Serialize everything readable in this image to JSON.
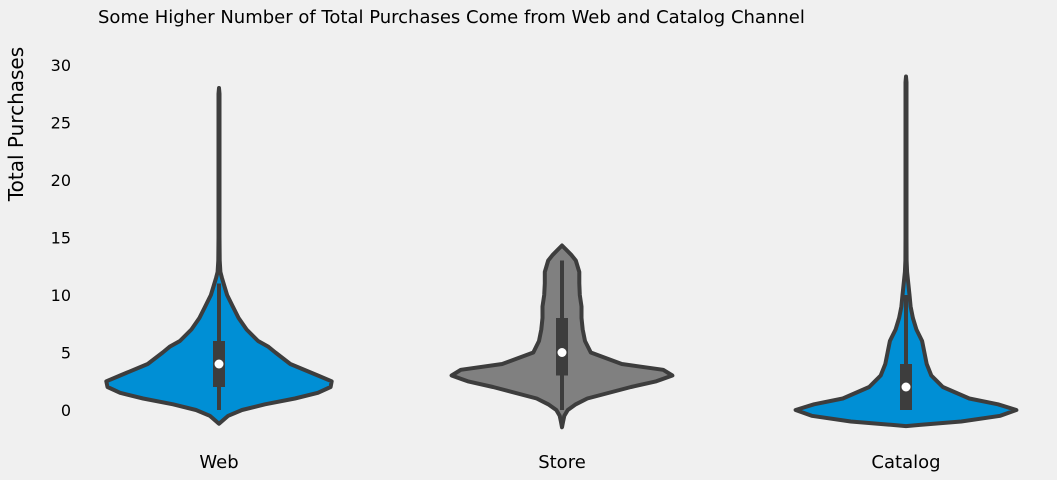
{
  "chart_data": {
    "type": "violin",
    "title": "Some Higher Number of Total Purchases Come from Web and Catalog Channel",
    "xlabel": "",
    "ylabel": "Total Purchases",
    "ylim": [
      -2,
      32
    ],
    "yticks": [
      "0",
      "5",
      "10",
      "15",
      "20",
      "25",
      "30"
    ],
    "categories": [
      "Web",
      "Store",
      "Catalog"
    ],
    "grid": false,
    "colors": {
      "Web": "#008fd5",
      "Store": "#808080",
      "Catalog": "#008fd5",
      "outline": "#3d3d3d",
      "median": "#ffffff",
      "background": "#f0f0f0"
    },
    "violins": [
      {
        "name": "Web",
        "min": 0,
        "q1": 2,
        "median": 4,
        "q3": 6,
        "whisker_high": 11,
        "max": 27,
        "density": [
          [
            -1.2,
            0.0
          ],
          [
            -0.5,
            0.08
          ],
          [
            0,
            0.2
          ],
          [
            0.5,
            0.4
          ],
          [
            1,
            0.66
          ],
          [
            1.5,
            0.86
          ],
          [
            2,
            0.97
          ],
          [
            2.5,
            0.98
          ],
          [
            3,
            0.86
          ],
          [
            4,
            0.62
          ],
          [
            5,
            0.49
          ],
          [
            5.5,
            0.43
          ],
          [
            6,
            0.34
          ],
          [
            7,
            0.24
          ],
          [
            8,
            0.17
          ],
          [
            9,
            0.12
          ],
          [
            10,
            0.07
          ],
          [
            11,
            0.04
          ],
          [
            11.5,
            0.025
          ],
          [
            12,
            0.012
          ],
          [
            13,
            0.006
          ],
          [
            15,
            0.004
          ],
          [
            20,
            0.004
          ],
          [
            25,
            0.004
          ],
          [
            27.5,
            0.004
          ],
          [
            28,
            0.0
          ]
        ]
      },
      {
        "name": "Store",
        "min": 0,
        "q1": 3,
        "median": 5,
        "q3": 8,
        "whisker_high": 13,
        "max": 14,
        "density": [
          [
            -1.5,
            0.0
          ],
          [
            -1,
            0.01
          ],
          [
            -0.5,
            0.02
          ],
          [
            0,
            0.05
          ],
          [
            0.5,
            0.12
          ],
          [
            1,
            0.22
          ],
          [
            2,
            0.6
          ],
          [
            2.5,
            0.82
          ],
          [
            3,
            0.96
          ],
          [
            3.5,
            0.88
          ],
          [
            4,
            0.52
          ],
          [
            5,
            0.25
          ],
          [
            6,
            0.2
          ],
          [
            7,
            0.18
          ],
          [
            8,
            0.17
          ],
          [
            9,
            0.17
          ],
          [
            10,
            0.155
          ],
          [
            11,
            0.15
          ],
          [
            12,
            0.15
          ],
          [
            13,
            0.12
          ],
          [
            13.5,
            0.08
          ],
          [
            14,
            0.03
          ],
          [
            14.3,
            0.0
          ]
        ]
      },
      {
        "name": "Catalog",
        "min": 0,
        "q1": 0,
        "median": 2,
        "q3": 4,
        "whisker_high": 10,
        "max": 28,
        "density": [
          [
            -1.4,
            0.0
          ],
          [
            -1.3,
            0.12
          ],
          [
            -1,
            0.48
          ],
          [
            -0.5,
            0.82
          ],
          [
            0,
            0.96
          ],
          [
            0.5,
            0.8
          ],
          [
            1,
            0.55
          ],
          [
            2,
            0.32
          ],
          [
            3,
            0.22
          ],
          [
            4,
            0.18
          ],
          [
            5,
            0.16
          ],
          [
            6,
            0.14
          ],
          [
            7,
            0.09
          ],
          [
            8,
            0.06
          ],
          [
            9,
            0.04
          ],
          [
            10,
            0.03
          ],
          [
            11,
            0.02
          ],
          [
            12,
            0.01
          ],
          [
            13,
            0.005
          ],
          [
            15,
            0.004
          ],
          [
            20,
            0.004
          ],
          [
            25,
            0.004
          ],
          [
            28.5,
            0.004
          ],
          [
            29,
            0.0
          ]
        ]
      }
    ]
  }
}
